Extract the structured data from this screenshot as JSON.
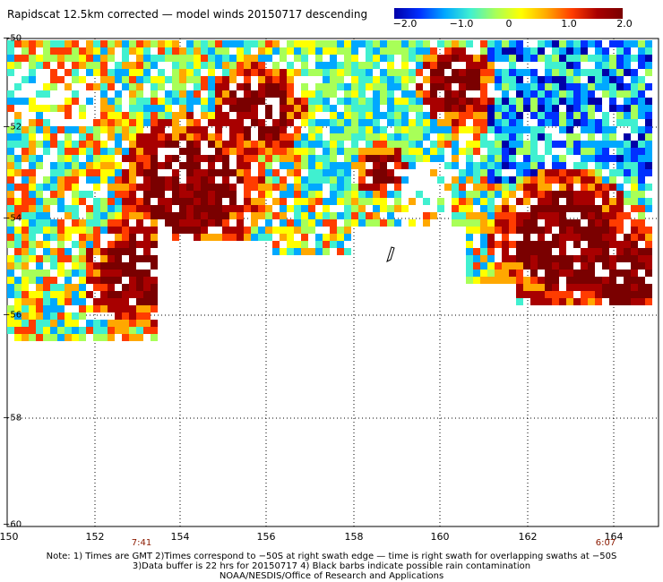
{
  "title": "Rapidscat 12.5km corrected — model winds 20150717 descending",
  "colorbar": {
    "ticks": [
      "−2.0",
      "−1.0",
      "0",
      "1.0",
      "2.0"
    ],
    "min": -2.0,
    "max": 2.0,
    "colors": [
      "#0000a8",
      "#0030ff",
      "#00a8ff",
      "#40f0d0",
      "#a8ff58",
      "#ffff00",
      "#ffa800",
      "#ff3c00",
      "#a80000",
      "#7a0000"
    ]
  },
  "axes": {
    "lat_labels": [
      "−50",
      "−52",
      "−54",
      "−56",
      "−58",
      "−60"
    ],
    "lon_labels": [
      "150",
      "152",
      "154",
      "156",
      "158",
      "160",
      "162",
      "164"
    ],
    "lon_range": [
      150,
      165
    ],
    "lat_range": [
      -60,
      -50
    ]
  },
  "swath_times": [
    "7:41",
    "6:07"
  ],
  "notes": [
    "Note: 1) Times are GMT 2)Times correspond to −50S at right swath edge — time is right swath for overlapping swaths at −50S",
    "3)Data buffer is 22 hrs for 20150717 4) Black barbs indicate possible rain contamination",
    "NOAA/NESDIS/Office of Research and Applications"
  ]
}
